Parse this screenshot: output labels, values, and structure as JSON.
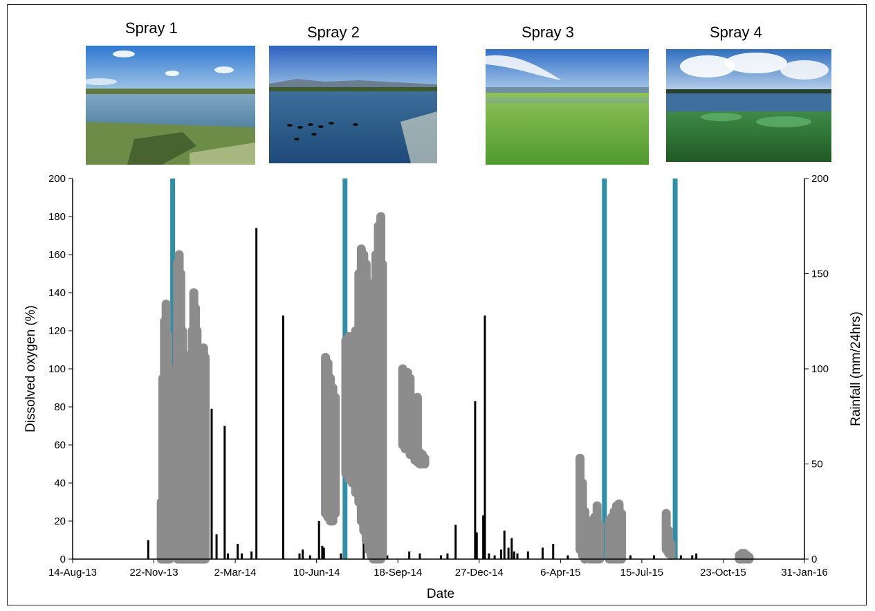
{
  "sprays": [
    {
      "label": "Spray 1",
      "date": "2013-12-15",
      "photo": "lagoon-open-water-photo"
    },
    {
      "label": "Spray 2",
      "date": "2014-07-15",
      "photo": "lagoon-with-ducks-photo"
    },
    {
      "label": "Spray 3",
      "date": "2015-05-30",
      "photo": "lagoon-weed-cover-photo"
    },
    {
      "label": "Spray 4",
      "date": "2015-08-25",
      "photo": "lagoon-lilies-photo"
    }
  ],
  "chart_data": {
    "type": "scatter",
    "xlabel": "Date",
    "ylabel": "Dissolved oxygen (%)",
    "y2label": "Rainfall (mm/24hrs)",
    "xlim": [
      "2013-08-14",
      "2016-01-31"
    ],
    "ylim": [
      0,
      200
    ],
    "y2lim": [
      0,
      200
    ],
    "x_ticks": [
      "14-Aug-13",
      "22-Nov-13",
      "2-Mar-14",
      "10-Jun-14",
      "18-Sep-14",
      "27-Dec-14",
      "6-Apr-15",
      "15-Jul-15",
      "23-Oct-15",
      "31-Jan-16"
    ],
    "x_tick_dates": [
      "2013-08-14",
      "2013-11-22",
      "2014-03-02",
      "2014-06-10",
      "2014-09-18",
      "2014-12-27",
      "2015-04-06",
      "2015-07-15",
      "2015-10-23",
      "2016-01-31"
    ],
    "y_ticks": [
      0,
      20,
      40,
      60,
      80,
      100,
      120,
      140,
      160,
      180,
      200
    ],
    "y2_ticks": [
      0,
      50,
      100,
      150,
      200
    ],
    "grid": false,
    "colors": {
      "dissolved_oxygen": "#8c8c8c",
      "rainfall": "#000000",
      "spray": "#2e8fa6"
    },
    "series": [
      {
        "kind": "scatter-band",
        "color": "#8c8c8c",
        "points": [
          [
            "2013-12-01",
            0,
            30
          ],
          [
            "2013-12-03",
            0,
            95
          ],
          [
            "2013-12-05",
            0,
            125
          ],
          [
            "2013-12-07",
            0,
            134
          ],
          [
            "2013-12-09",
            0,
            118
          ],
          [
            "2013-12-11",
            0,
            100
          ],
          [
            "2013-12-21",
            0,
            156
          ],
          [
            "2013-12-23",
            0,
            160
          ],
          [
            "2013-12-25",
            0,
            150
          ],
          [
            "2013-12-27",
            0,
            120
          ],
          [
            "2013-12-29",
            0,
            105
          ],
          [
            "2013-12-31",
            0,
            107
          ],
          [
            "2014-01-02",
            0,
            106
          ],
          [
            "2014-01-04",
            0,
            100
          ],
          [
            "2014-01-06",
            0,
            95
          ],
          [
            "2014-01-08",
            0,
            120
          ],
          [
            "2014-01-10",
            0,
            140
          ],
          [
            "2014-01-12",
            0,
            132
          ],
          [
            "2014-01-14",
            0,
            120
          ],
          [
            "2014-01-16",
            0,
            98
          ],
          [
            "2014-01-18",
            0,
            90
          ],
          [
            "2014-01-20",
            0,
            105
          ],
          [
            "2014-01-22",
            0,
            111
          ],
          [
            "2014-01-24",
            0,
            106
          ],
          [
            "2014-06-21",
            24,
            106
          ],
          [
            "2014-06-24",
            22,
            103
          ],
          [
            "2014-06-27",
            20,
            95
          ],
          [
            "2014-06-30",
            20,
            90
          ],
          [
            "2014-07-03",
            24,
            85
          ],
          [
            "2014-07-16",
            45,
            115
          ],
          [
            "2014-07-20",
            42,
            117
          ],
          [
            "2014-07-24",
            40,
            116
          ],
          [
            "2014-07-28",
            35,
            120
          ],
          [
            "2014-08-01",
            30,
            150
          ],
          [
            "2014-08-04",
            20,
            163
          ],
          [
            "2014-08-07",
            15,
            160
          ],
          [
            "2014-08-10",
            10,
            155
          ],
          [
            "2014-08-13",
            5,
            145
          ],
          [
            "2014-08-16",
            2,
            130
          ],
          [
            "2014-08-19",
            0,
            125
          ],
          [
            "2014-08-22",
            0,
            160
          ],
          [
            "2014-08-25",
            0,
            175
          ],
          [
            "2014-08-28",
            0,
            180
          ],
          [
            "2014-08-30",
            2,
            155
          ],
          [
            "2014-09-24",
            60,
            100
          ],
          [
            "2014-09-27",
            58,
            95
          ],
          [
            "2014-09-30",
            65,
            98
          ],
          [
            "2014-10-03",
            55,
            95
          ],
          [
            "2014-10-06",
            62,
            85
          ],
          [
            "2014-10-09",
            52,
            75
          ],
          [
            "2014-10-12",
            51,
            85
          ],
          [
            "2014-10-15",
            50,
            56
          ],
          [
            "2014-10-18",
            50,
            55
          ],
          [
            "2014-10-21",
            50,
            53
          ],
          [
            "2015-04-30",
            5,
            53
          ],
          [
            "2015-05-03",
            2,
            40
          ],
          [
            "2015-05-06",
            0,
            25
          ],
          [
            "2015-05-12",
            0,
            20
          ],
          [
            "2015-05-15",
            0,
            12
          ],
          [
            "2015-05-18",
            0,
            22
          ],
          [
            "2015-05-21",
            0,
            28
          ],
          [
            "2015-05-24",
            0,
            18
          ],
          [
            "2015-06-05",
            0,
            20
          ],
          [
            "2015-06-08",
            0,
            22
          ],
          [
            "2015-06-11",
            0,
            25
          ],
          [
            "2015-06-14",
            0,
            28
          ],
          [
            "2015-06-17",
            0,
            29
          ],
          [
            "2015-06-20",
            0,
            24
          ],
          [
            "2015-08-14",
            5,
            24
          ],
          [
            "2015-08-17",
            3,
            15
          ],
          [
            "2015-08-20",
            2,
            8
          ],
          [
            "2015-11-12",
            0,
            2
          ],
          [
            "2015-11-15",
            0,
            3
          ],
          [
            "2015-11-18",
            0,
            3
          ],
          [
            "2015-11-21",
            0,
            2
          ],
          [
            "2015-11-24",
            0,
            1
          ]
        ]
      },
      {
        "kind": "rainfall-spikes",
        "color": "#000000",
        "points": [
          [
            "2013-11-15",
            10
          ],
          [
            "2013-11-27",
            16
          ],
          [
            "2013-11-30",
            12
          ],
          [
            "2013-12-02",
            4
          ],
          [
            "2013-12-20",
            7
          ],
          [
            "2014-01-05",
            3
          ],
          [
            "2014-01-13",
            21
          ],
          [
            "2014-01-20",
            10
          ],
          [
            "2014-01-28",
            23
          ],
          [
            "2014-02-01",
            79
          ],
          [
            "2014-02-07",
            13
          ],
          [
            "2014-02-17",
            70
          ],
          [
            "2014-02-21",
            3
          ],
          [
            "2014-03-05",
            8
          ],
          [
            "2014-03-10",
            3
          ],
          [
            "2014-03-22",
            4
          ],
          [
            "2014-03-28",
            174
          ],
          [
            "2014-04-30",
            128
          ],
          [
            "2014-05-20",
            3
          ],
          [
            "2014-05-24",
            5
          ],
          [
            "2014-06-02",
            2
          ],
          [
            "2014-06-13",
            20
          ],
          [
            "2014-06-17",
            7
          ],
          [
            "2014-06-19",
            6
          ],
          [
            "2014-07-10",
            3
          ],
          [
            "2014-08-07",
            46
          ],
          [
            "2014-08-15",
            3
          ],
          [
            "2014-09-05",
            2
          ],
          [
            "2014-10-02",
            4
          ],
          [
            "2014-10-15",
            3
          ],
          [
            "2014-11-10",
            2
          ],
          [
            "2014-11-18",
            3
          ],
          [
            "2014-11-28",
            18
          ],
          [
            "2014-12-22",
            83
          ],
          [
            "2014-12-24",
            14
          ],
          [
            "2015-01-01",
            23
          ],
          [
            "2015-01-03",
            128
          ],
          [
            "2015-01-08",
            3
          ],
          [
            "2015-01-15",
            2
          ],
          [
            "2015-01-23",
            5
          ],
          [
            "2015-01-27",
            15
          ],
          [
            "2015-02-01",
            6
          ],
          [
            "2015-02-05",
            11
          ],
          [
            "2015-02-08",
            4
          ],
          [
            "2015-02-12",
            3
          ],
          [
            "2015-02-25",
            4
          ],
          [
            "2015-03-15",
            6
          ],
          [
            "2015-03-28",
            8
          ],
          [
            "2015-04-15",
            2
          ],
          [
            "2015-05-10",
            6
          ],
          [
            "2015-05-20",
            4
          ],
          [
            "2015-06-05",
            3
          ],
          [
            "2015-07-01",
            2
          ],
          [
            "2015-07-30",
            2
          ],
          [
            "2015-08-20",
            3
          ],
          [
            "2015-09-01",
            2
          ],
          [
            "2015-09-15",
            2
          ],
          [
            "2015-09-20",
            3
          ]
        ]
      }
    ]
  }
}
